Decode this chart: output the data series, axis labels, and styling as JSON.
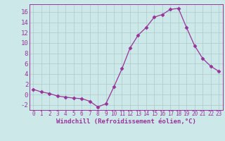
{
  "x": [
    0,
    1,
    2,
    3,
    4,
    5,
    6,
    7,
    8,
    9,
    10,
    11,
    12,
    13,
    14,
    15,
    16,
    17,
    18,
    19,
    20,
    21,
    22,
    23
  ],
  "y": [
    1.0,
    0.5,
    0.2,
    -0.3,
    -0.5,
    -0.7,
    -0.8,
    -1.3,
    -2.4,
    -1.8,
    1.5,
    5.0,
    9.0,
    11.5,
    13.0,
    15.0,
    15.5,
    16.5,
    16.7,
    13.0,
    9.5,
    7.0,
    5.5,
    4.5
  ],
  "line_color": "#993399",
  "marker": "D",
  "marker_size": 2.5,
  "bg_color": "#cce8e8",
  "grid_color": "#aacccc",
  "xlabel": "Windchill (Refroidissement éolien,°C)",
  "xlabel_color": "#993399",
  "ylim": [
    -3,
    17.5
  ],
  "yticks": [
    -2,
    0,
    2,
    4,
    6,
    8,
    10,
    12,
    14,
    16
  ],
  "xticks": [
    0,
    1,
    2,
    3,
    4,
    5,
    6,
    7,
    8,
    9,
    10,
    11,
    12,
    13,
    14,
    15,
    16,
    17,
    18,
    19,
    20,
    21,
    22,
    23
  ],
  "tick_color": "#993399",
  "ytick_labelsize": 6.5,
  "xtick_labelsize": 5.5
}
